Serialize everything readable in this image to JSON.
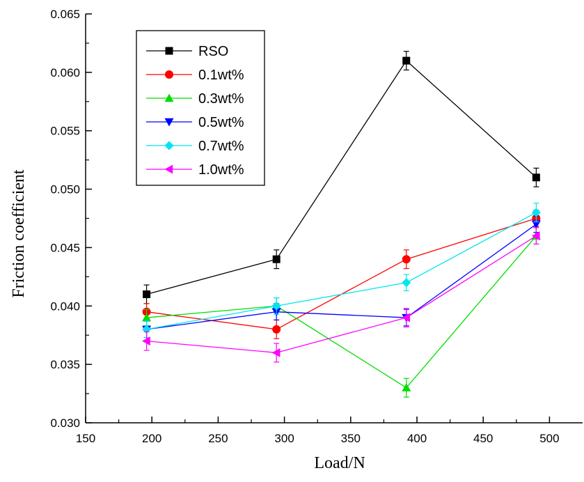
{
  "chart_data": {
    "type": "line",
    "title": "",
    "xlabel": "Load/N",
    "ylabel": "Friction coefficient",
    "xlim": [
      150,
      525
    ],
    "ylim": [
      0.03,
      0.065
    ],
    "xticks": [
      150,
      200,
      250,
      300,
      350,
      400,
      450,
      500
    ],
    "xtick_labels": [
      "150",
      "200",
      "250",
      "300",
      "350",
      "400",
      "450",
      "500"
    ],
    "yticks": [
      0.03,
      0.035,
      0.04,
      0.045,
      0.05,
      0.055,
      0.06,
      0.065
    ],
    "ytick_labels": [
      "0.030",
      "0.035",
      "0.040",
      "0.045",
      "0.050",
      "0.055",
      "0.060",
      "0.065"
    ],
    "grid": false,
    "legend_position": "top-left",
    "x": [
      196,
      294,
      392,
      490
    ],
    "series": [
      {
        "name": "RSO",
        "color": "#000000",
        "marker": "square",
        "values": [
          0.041,
          0.044,
          0.061,
          0.051
        ],
        "errors": [
          0.0008,
          0.0008,
          0.0008,
          0.0008
        ]
      },
      {
        "name": "0.1wt%",
        "color": "#ff0000",
        "marker": "circle",
        "values": [
          0.0395,
          0.038,
          0.044,
          0.0475
        ],
        "errors": [
          0.0007,
          0.0008,
          0.0008,
          0.0007
        ]
      },
      {
        "name": "0.3wt%",
        "color": "#00dd00",
        "marker": "triangle-up",
        "values": [
          0.039,
          0.04,
          0.033,
          0.046
        ],
        "errors": [
          0.0007,
          0.0007,
          0.0008,
          0.0007
        ]
      },
      {
        "name": "0.5wt%",
        "color": "#0000ff",
        "marker": "triangle-down",
        "values": [
          0.038,
          0.0395,
          0.039,
          0.047
        ],
        "errors": [
          0.0007,
          0.0007,
          0.0007,
          0.0007
        ]
      },
      {
        "name": "0.7wt%",
        "color": "#00e5ee",
        "marker": "diamond",
        "values": [
          0.038,
          0.04,
          0.042,
          0.048
        ],
        "errors": [
          0.0007,
          0.0007,
          0.0007,
          0.0008
        ]
      },
      {
        "name": "1.0wt%",
        "color": "#ff00ff",
        "marker": "triangle-left",
        "values": [
          0.037,
          0.036,
          0.039,
          0.046
        ],
        "errors": [
          0.0008,
          0.0008,
          0.0008,
          0.0007
        ]
      }
    ]
  }
}
